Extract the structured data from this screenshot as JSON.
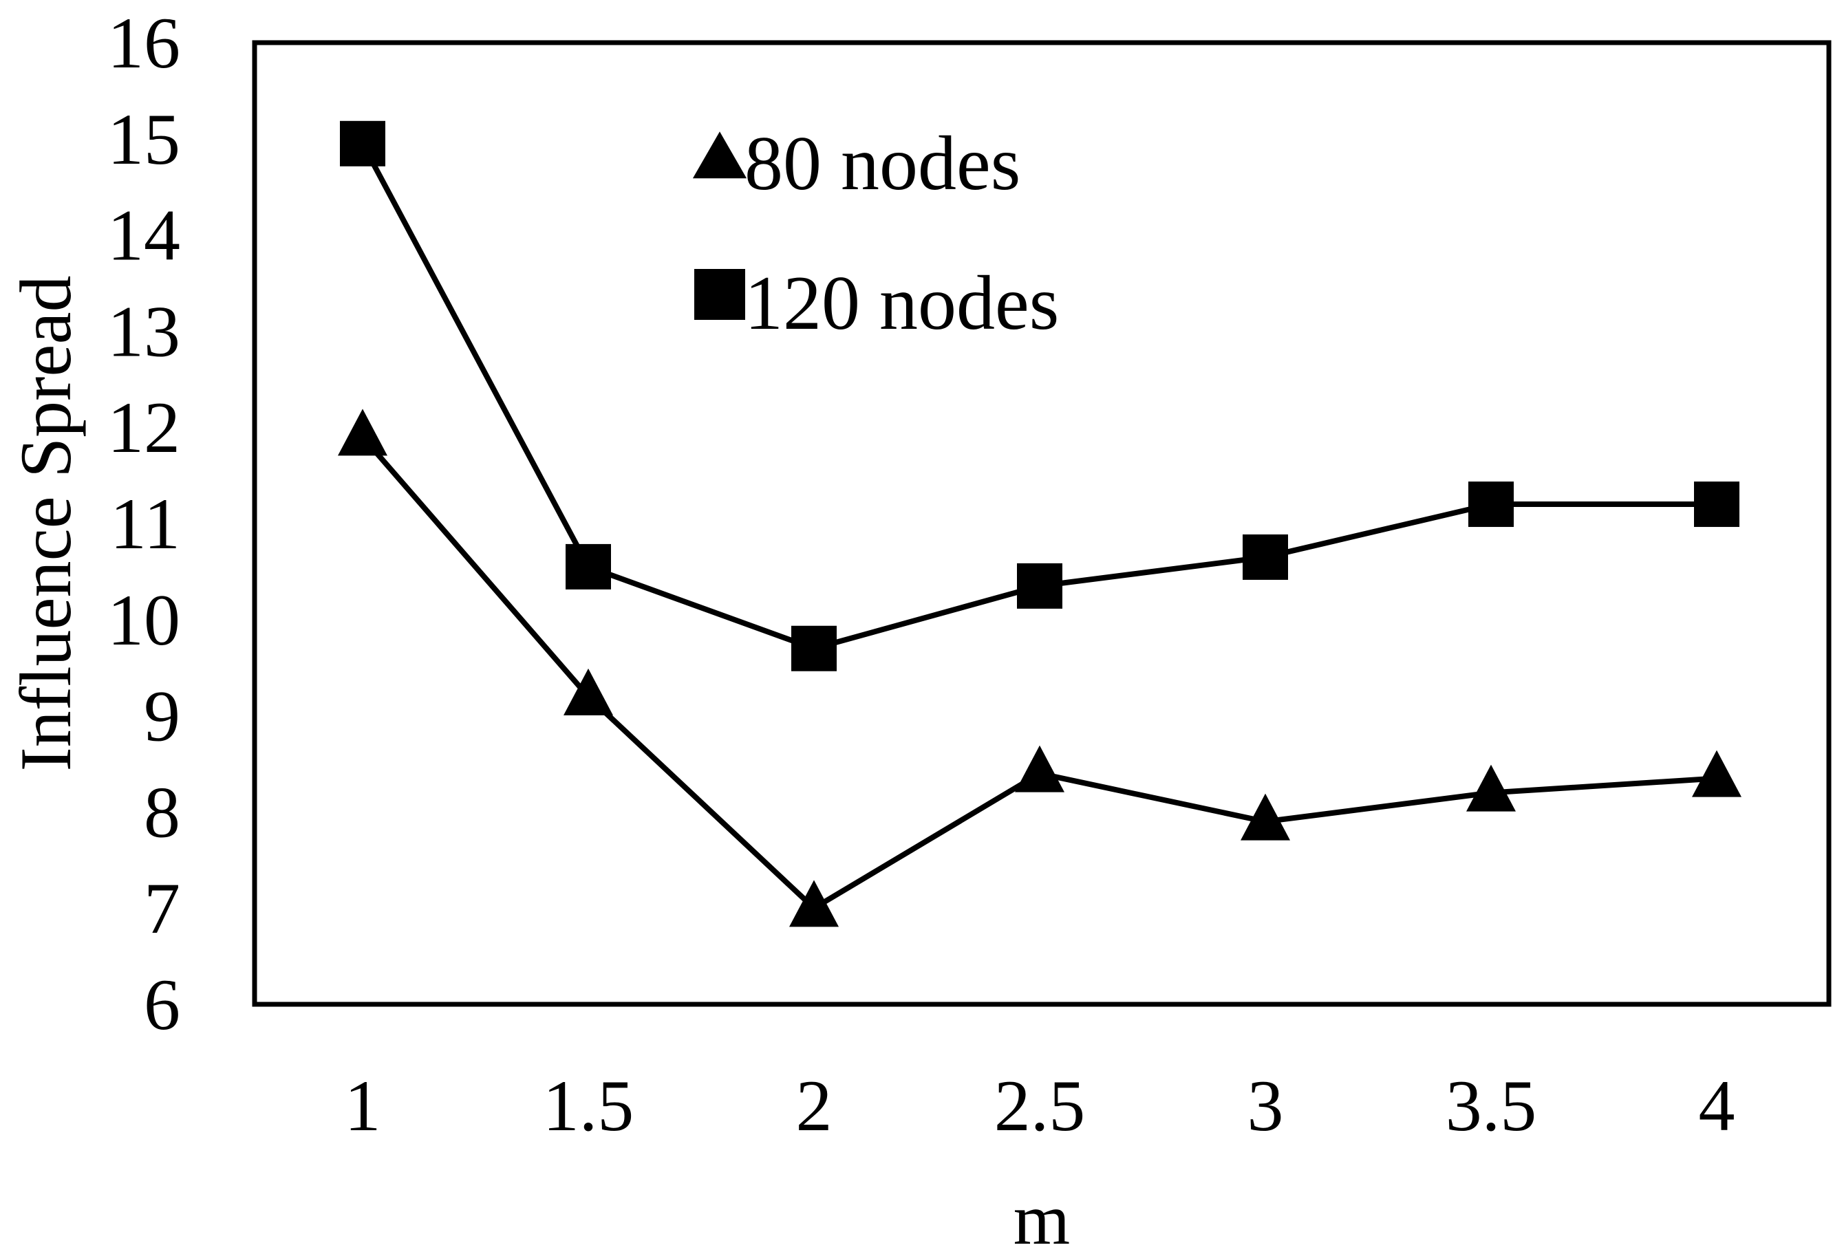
{
  "chart_data": {
    "type": "line",
    "xlabel": "m",
    "ylabel": "Influence Spread",
    "x": [
      1,
      1.5,
      2,
      2.5,
      3,
      3.5,
      4
    ],
    "x_tick_labels": [
      "1",
      "1.5",
      "2",
      "2.5",
      "3",
      "3.5",
      "4"
    ],
    "y_ticks": [
      6,
      7,
      8,
      9,
      10,
      11,
      12,
      13,
      14,
      15,
      16
    ],
    "y_tick_labels": [
      "6",
      "7",
      "8",
      "9",
      "10",
      "11",
      "12",
      "13",
      "14",
      "15",
      "16"
    ],
    "ylim": [
      6,
      16
    ],
    "grid": false,
    "legend_position": "top-center",
    "series": [
      {
        "name": "80 nodes",
        "marker": "triangle",
        "color": "#000000",
        "values": [
          11.9,
          9.2,
          7.0,
          8.4,
          7.9,
          8.2,
          8.35
        ]
      },
      {
        "name": "120 nodes",
        "marker": "square",
        "color": "#000000",
        "values": [
          14.95,
          10.55,
          9.7,
          10.35,
          10.65,
          11.2,
          11.2
        ]
      }
    ]
  }
}
